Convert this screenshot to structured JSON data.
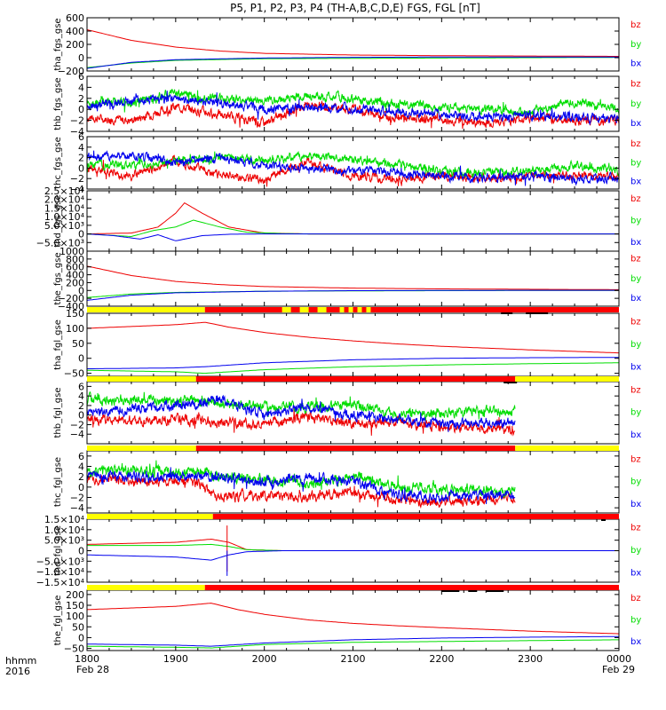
{
  "title": "P5, P1, P2, P3, P4 (TH-A,B,C,D,E) FGS, FGL [nT]",
  "colors": {
    "bx": "#0000ee",
    "by": "#00dd00",
    "bz": "#ee0000",
    "bar_yellow": "#ffff00",
    "bar_red": "#ff0000",
    "text": "#000000"
  },
  "xaxis": {
    "ticks": [
      "1800",
      "1900",
      "2000",
      "2100",
      "2200",
      "2300",
      "0000"
    ],
    "start_date": "Feb 28",
    "end_date": "Feb 29",
    "label_top": "hhmm",
    "label_bottom": "2016"
  },
  "chart_data": [
    {
      "type": "line",
      "ylabel": "tha_fgs_gse",
      "ylim": [
        -200,
        600
      ],
      "yticks": [
        "600",
        "400",
        "200",
        "0",
        "−200"
      ],
      "legend": [
        "bz",
        "by",
        "bx"
      ],
      "kind": "decay",
      "series": [
        {
          "name": "bz",
          "x": [
            18.0,
            18.5,
            19.0,
            19.5,
            20.0,
            21.0,
            22.0,
            23.0,
            24.0
          ],
          "y": [
            420,
            260,
            160,
            100,
            65,
            40,
            30,
            25,
            20
          ]
        },
        {
          "name": "by",
          "x": [
            18.0,
            18.5,
            19.0,
            20.0,
            21.0,
            22.0,
            23.0,
            24.0
          ],
          "y": [
            -150,
            -80,
            -40,
            -15,
            -10,
            -5,
            0,
            5
          ]
        },
        {
          "name": "bx",
          "x": [
            18.0,
            18.5,
            19.0,
            20.0,
            21.0,
            22.0,
            23.0,
            24.0
          ],
          "y": [
            -160,
            -70,
            -30,
            -5,
            5,
            10,
            10,
            10
          ]
        }
      ]
    },
    {
      "type": "line",
      "ylabel": "thb_fgs_gse",
      "ylim": [
        -4,
        6
      ],
      "yticks": [
        "6",
        "4",
        "2",
        "0",
        "−2",
        "−4"
      ],
      "legend": [
        "bz",
        "by",
        "bx"
      ],
      "kind": "noisy",
      "series": [
        {
          "name": "bz",
          "x": [
            18.0,
            18.5,
            19.0,
            19.5,
            20.0,
            20.5,
            21.0,
            21.5,
            22.0,
            22.5,
            23.0,
            23.5,
            24.0
          ],
          "y": [
            -1.5,
            -2,
            0.5,
            -1,
            -2.5,
            1,
            0,
            -1.5,
            -2,
            -2.5,
            -1.5,
            -2,
            -2
          ]
        },
        {
          "name": "by",
          "x": [
            18.0,
            18.5,
            19.0,
            19.5,
            20.0,
            20.5,
            21.0,
            21.5,
            22.0,
            22.5,
            23.0,
            23.5,
            24.0
          ],
          "y": [
            1.5,
            1,
            3,
            2,
            1.5,
            2.5,
            2,
            1,
            0.5,
            0,
            -0.5,
            1.5,
            0
          ]
        },
        {
          "name": "bx",
          "x": [
            18.0,
            18.5,
            19.0,
            19.5,
            20.0,
            20.5,
            21.0,
            21.5,
            22.0,
            22.5,
            23.0,
            23.5,
            24.0
          ],
          "y": [
            0.5,
            1.5,
            2,
            1,
            0,
            0.5,
            0,
            -0.5,
            -1,
            -1.5,
            -1,
            -1.5,
            -1.5
          ]
        }
      ]
    },
    {
      "type": "line",
      "ylabel": "thc_fgs_gse",
      "ylim": [
        -4,
        6
      ],
      "yticks": [
        "6",
        "4",
        "2",
        "0",
        "−2",
        "−4"
      ],
      "legend": [
        "bz",
        "by",
        "bx"
      ],
      "kind": "noisy",
      "series": [
        {
          "name": "bz",
          "x": [
            18.0,
            18.5,
            19.0,
            19.5,
            20.0,
            20.5,
            21.0,
            21.5,
            22.0,
            22.5,
            23.0,
            23.5,
            24.0
          ],
          "y": [
            0,
            -1.5,
            1.5,
            -1.5,
            -2,
            1,
            -1.5,
            -2,
            -1.5,
            -2,
            -1.5,
            -1.5,
            -1.5
          ]
        },
        {
          "name": "by",
          "x": [
            18.0,
            18.5,
            19.0,
            19.5,
            20.0,
            20.5,
            21.0,
            21.5,
            22.0,
            22.5,
            23.0,
            23.5,
            24.0
          ],
          "y": [
            1,
            0.5,
            1.5,
            2,
            1.5,
            2.5,
            1.5,
            0.5,
            -0.5,
            -1,
            -0.5,
            0.5,
            -0.5
          ]
        },
        {
          "name": "bx",
          "x": [
            18.0,
            18.5,
            19.0,
            19.5,
            20.0,
            20.5,
            21.0,
            21.5,
            22.0,
            22.5,
            23.0,
            23.5,
            24.0
          ],
          "y": [
            2,
            2.5,
            1,
            2,
            0.5,
            0,
            -0.5,
            -1,
            -1.5,
            -2,
            -1.5,
            -2,
            -2
          ]
        }
      ]
    },
    {
      "type": "line",
      "ylabel": "thd_fgs_gse",
      "ylim": [
        -10000,
        25000
      ],
      "yticks": [
        "2.5×10⁴",
        "2.0×10⁴",
        "1.5×10⁴",
        "1.0×10⁴",
        "5.0×10³",
        "0",
        "−5.0×10³"
      ],
      "legend": [
        "bz",
        "by",
        "bx"
      ],
      "kind": "peak",
      "series": [
        {
          "name": "bz",
          "x": [
            18.0,
            18.5,
            18.8,
            19.0,
            19.1,
            19.3,
            19.6,
            20.0,
            20.5,
            21.0,
            24.0
          ],
          "y": [
            0,
            500,
            4000,
            12000,
            18000,
            12000,
            4000,
            500,
            0,
            0,
            0
          ]
        },
        {
          "name": "by",
          "x": [
            18.0,
            18.5,
            18.75,
            19.0,
            19.2,
            19.5,
            19.8,
            20.2,
            20.5,
            24.0
          ],
          "y": [
            0,
            -1500,
            2000,
            4000,
            8000,
            4000,
            1000,
            200,
            0,
            0
          ]
        },
        {
          "name": "bx",
          "x": [
            18.0,
            18.3,
            18.6,
            18.8,
            19.0,
            19.3,
            19.6,
            20.0,
            20.5,
            24.0
          ],
          "y": [
            0,
            -1000,
            -3000,
            -500,
            -4000,
            -1000,
            -200,
            0,
            0,
            0
          ]
        }
      ]
    },
    {
      "type": "line",
      "ylabel": "the_fgs_gse",
      "ylim": [
        -400,
        1000
      ],
      "yticks": [
        "1000",
        "800",
        "600",
        "400",
        "200",
        "0",
        "−200",
        "−400"
      ],
      "legend": [
        "bz",
        "by",
        "bx"
      ],
      "kind": "decay",
      "series": [
        {
          "name": "bz",
          "x": [
            18.0,
            18.5,
            19.0,
            19.5,
            20.0,
            21.0,
            22.0,
            23.0,
            24.0
          ],
          "y": [
            620,
            380,
            230,
            150,
            100,
            60,
            40,
            30,
            20
          ]
        },
        {
          "name": "by",
          "x": [
            18.0,
            18.5,
            19.0,
            20.0,
            21.0,
            22.0,
            23.0,
            24.0
          ],
          "y": [
            -180,
            -90,
            -50,
            -20,
            -10,
            -5,
            0,
            0
          ]
        },
        {
          "name": "bx",
          "x": [
            18.0,
            18.5,
            19.0,
            20.0,
            21.0,
            22.0,
            23.0,
            24.0
          ],
          "y": [
            -250,
            -120,
            -60,
            -20,
            -5,
            0,
            5,
            5
          ]
        }
      ]
    },
    {
      "type": "line",
      "ylabel": "tha_fgl_gse",
      "ylim": [
        -60,
        150
      ],
      "yticks": [
        "150",
        "100",
        "50",
        "0",
        "−50"
      ],
      "legend": [
        "bz",
        "by",
        "bx"
      ],
      "kind": "decay",
      "series": [
        {
          "name": "bz",
          "x": [
            18.0,
            19.0,
            19.33,
            19.6,
            20.0,
            20.5,
            21.0,
            21.5,
            22.0,
            22.5,
            23.0,
            23.5,
            24.0
          ],
          "y": [
            100,
            112,
            120,
            104,
            86,
            70,
            58,
            48,
            40,
            34,
            28,
            23,
            18
          ]
        },
        {
          "name": "by",
          "x": [
            18.0,
            19.0,
            19.33,
            20.0,
            21.0,
            22.0,
            23.0,
            24.0
          ],
          "y": [
            -40,
            -45,
            -50,
            -38,
            -28,
            -22,
            -18,
            -15
          ]
        },
        {
          "name": "bx",
          "x": [
            18.0,
            19.0,
            19.33,
            20.0,
            21.0,
            22.0,
            23.0,
            24.0
          ],
          "y": [
            -35,
            -32,
            -28,
            -15,
            -5,
            0,
            2,
            3
          ]
        }
      ]
    },
    {
      "type": "line",
      "ylabel": "thb_fgl_gse",
      "ylim": [
        -6,
        7
      ],
      "yticks": [
        "6",
        "4",
        "2",
        "0",
        "−2",
        "−4"
      ],
      "legend": [
        "bz",
        "by",
        "bx"
      ],
      "kind": "noisy",
      "series": [
        {
          "name": "bz",
          "x": [
            18.0,
            19.25,
            19.5,
            20.0,
            20.5,
            21.0,
            21.5,
            22.0,
            22.5,
            22.83
          ],
          "y": [
            -1,
            -1,
            -1.5,
            -2,
            0,
            -2,
            -1.5,
            -2.5,
            -2.5,
            -3.5
          ]
        },
        {
          "name": "by",
          "x": [
            18.0,
            19.25,
            19.5,
            20.0,
            20.5,
            21.0,
            21.5,
            22.0,
            22.5,
            22.83
          ],
          "y": [
            3.2,
            3,
            2.5,
            2,
            1.5,
            2.5,
            0,
            0.5,
            1,
            0.5
          ]
        },
        {
          "name": "bx",
          "x": [
            18.0,
            19.25,
            19.5,
            20.0,
            20.5,
            21.0,
            21.5,
            22.0,
            22.5,
            22.83
          ],
          "y": [
            0.5,
            2.5,
            3,
            0,
            1.5,
            0,
            -1,
            -2,
            -1.5,
            -2
          ]
        }
      ]
    },
    {
      "type": "line",
      "ylabel": "thc_fgl_gse",
      "ylim": [
        -5,
        7
      ],
      "yticks": [
        "6",
        "4",
        "2",
        "0",
        "−2",
        "−4"
      ],
      "legend": [
        "bz",
        "by",
        "bx"
      ],
      "kind": "noisy",
      "series": [
        {
          "name": "bz",
          "x": [
            18.0,
            19.25,
            19.5,
            20.0,
            20.5,
            21.0,
            21.5,
            22.0,
            22.5,
            22.83
          ],
          "y": [
            1.5,
            1,
            -2,
            -1.5,
            -2,
            -1,
            -2.5,
            -3,
            -2.5,
            -2
          ]
        },
        {
          "name": "by",
          "x": [
            18.0,
            19.25,
            19.5,
            20.0,
            20.5,
            21.0,
            21.5,
            22.0,
            22.5,
            22.83
          ],
          "y": [
            3,
            3,
            2,
            1.5,
            0.5,
            2,
            0,
            -0.5,
            -0.5,
            -1
          ]
        },
        {
          "name": "bx",
          "x": [
            18.0,
            19.25,
            19.5,
            20.0,
            20.5,
            21.0,
            21.5,
            22.0,
            22.5,
            22.83
          ],
          "y": [
            2,
            2,
            2,
            1,
            2,
            1,
            -1.5,
            -2,
            -1.5,
            -1.5
          ]
        }
      ]
    },
    {
      "type": "line",
      "ylabel": "thd_fgl_gse",
      "ylim": [
        -15000,
        15000
      ],
      "yticks": [
        "1.5×10⁴",
        "1.0×10⁴",
        "5.0×10³",
        "0",
        "−5.0×10³",
        "−1.0×10⁴",
        "−1.5×10⁴"
      ],
      "legend": [
        "bz",
        "by",
        "bx"
      ],
      "kind": "ramp",
      "series": [
        {
          "name": "bz",
          "x": [
            18.0,
            19.0,
            19.4,
            19.6,
            19.8,
            20.2,
            24.0
          ],
          "y": [
            3000,
            4000,
            5500,
            4000,
            500,
            0,
            0
          ]
        },
        {
          "name": "by",
          "x": [
            18.0,
            19.0,
            19.4,
            19.6,
            19.8,
            20.2,
            24.0
          ],
          "y": [
            2500,
            2500,
            3000,
            2000,
            500,
            0,
            0
          ]
        },
        {
          "name": "bx",
          "x": [
            18.0,
            19.0,
            19.4,
            19.6,
            19.8,
            20.2,
            24.0
          ],
          "y": [
            -2000,
            -3000,
            -4500,
            -2000,
            -500,
            0,
            0
          ]
        }
      ]
    },
    {
      "type": "line",
      "ylabel": "the_fgl_gse",
      "ylim": [
        -60,
        220
      ],
      "yticks": [
        "200",
        "150",
        "100",
        "50",
        "0",
        "−50"
      ],
      "legend": [
        "bz",
        "by",
        "bx"
      ],
      "kind": "decay",
      "series": [
        {
          "name": "bz",
          "x": [
            18.0,
            19.0,
            19.4,
            19.7,
            20.0,
            20.5,
            21.0,
            21.5,
            22.0,
            22.5,
            23.0,
            23.5,
            24.0
          ],
          "y": [
            130,
            145,
            160,
            130,
            108,
            82,
            66,
            55,
            46,
            38,
            30,
            24,
            18
          ]
        },
        {
          "name": "by",
          "x": [
            18.0,
            19.0,
            19.4,
            20.0,
            21.0,
            22.0,
            23.0,
            24.0
          ],
          "y": [
            -40,
            -45,
            -48,
            -32,
            -22,
            -18,
            -14,
            -10
          ]
        },
        {
          "name": "bx",
          "x": [
            18.0,
            19.0,
            19.4,
            20.0,
            21.0,
            22.0,
            23.0,
            24.0
          ],
          "y": [
            -30,
            -35,
            -40,
            -25,
            -10,
            -2,
            2,
            5
          ]
        }
      ]
    }
  ],
  "mode_bars": [
    {
      "segments": [
        [
          18.0,
          19.33,
          "yellow"
        ],
        [
          19.33,
          24.0,
          "red"
        ]
      ],
      "dark": [
        [
          22.67,
          22.8
        ],
        [
          22.95,
          23.2
        ]
      ]
    },
    {
      "segments": [
        [
          18.0,
          19.23,
          "yellow"
        ],
        [
          19.23,
          22.83,
          "red"
        ],
        [
          22.83,
          24.0,
          "yellow"
        ]
      ],
      "dark": [
        [
          22.7,
          22.85
        ]
      ]
    },
    {
      "segments": [
        [
          18.0,
          19.23,
          "yellow"
        ],
        [
          19.23,
          22.83,
          "red"
        ],
        [
          22.83,
          24.0,
          "yellow"
        ]
      ],
      "dark": []
    },
    {
      "segments": [
        [
          18.0,
          19.42,
          "yellow"
        ],
        [
          19.42,
          24.0,
          "red"
        ]
      ],
      "dark": [
        [
          23.8,
          23.85
        ]
      ]
    },
    {
      "segments": [
        [
          18.0,
          19.33,
          "yellow"
        ],
        [
          19.33,
          24.0,
          "red"
        ]
      ],
      "dark": [
        [
          22.0,
          22.2
        ],
        [
          22.3,
          22.4
        ],
        [
          22.5,
          22.7
        ]
      ]
    }
  ]
}
